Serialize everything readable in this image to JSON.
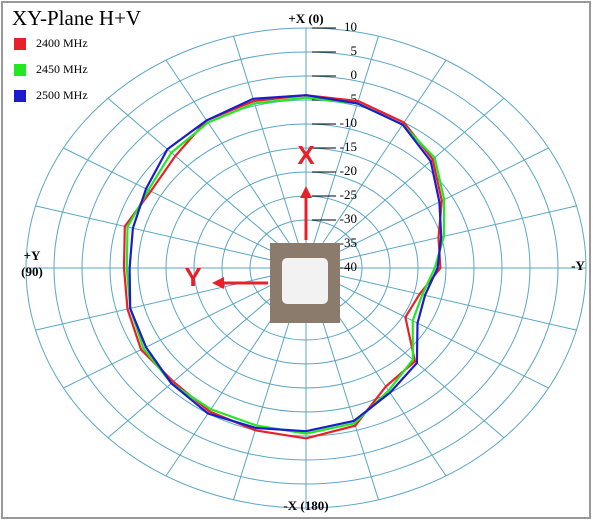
{
  "chart_data": {
    "type": "polar",
    "title": "XY-Plane  H+V",
    "theta": [
      0,
      15,
      30,
      45,
      60,
      75,
      90,
      105,
      120,
      135,
      150,
      165,
      180,
      195,
      210,
      225,
      240,
      255,
      270,
      285,
      300,
      315,
      330,
      345
    ],
    "series": [
      {
        "name": "2400 MHz",
        "color": "#e8202a",
        "values": [
          -4,
          -4,
          -4.5,
          -7,
          -8,
          -6.5,
          -7.5,
          -7,
          -6,
          -6.5,
          -5.5,
          -5,
          -4.5,
          -6,
          -11.5,
          -12.5,
          -19.5,
          -19,
          -16,
          -15.5,
          -12,
          -8,
          -5,
          -4
        ]
      },
      {
        "name": "2450 MHz",
        "color": "#22e822",
        "values": [
          -4.5,
          -4.5,
          -5,
          -6,
          -7.5,
          -7,
          -8,
          -7.5,
          -6.5,
          -6,
          -6,
          -6,
          -5.5,
          -6.5,
          -10.5,
          -13,
          -18,
          -18.5,
          -17,
          -14.5,
          -11.5,
          -7.5,
          -5.5,
          -4.5
        ]
      },
      {
        "name": "2500 MHz",
        "color": "#1c1ccc",
        "values": [
          -4,
          -3.5,
          -4.5,
          -5,
          -7,
          -8,
          -8.5,
          -7.5,
          -7,
          -6,
          -5,
          -5.5,
          -6,
          -7,
          -10,
          -12,
          -17,
          -18,
          -16.5,
          -15,
          -12.5,
          -8.5,
          -5.5,
          -4.5
        ]
      }
    ],
    "rlim": [
      -40,
      10
    ],
    "rticks": [
      10,
      5,
      0,
      -5,
      -10,
      -15,
      -20,
      -25,
      -30,
      -35,
      -40
    ],
    "thetaticks": [
      0,
      15,
      30,
      45,
      60,
      75,
      90,
      105,
      120,
      135,
      150,
      165,
      180,
      195,
      210,
      225,
      240,
      255,
      270,
      285,
      300,
      315,
      330,
      345
    ],
    "direction_labels": {
      "top": "+X (0)",
      "left": [
        "+Y",
        "(90)"
      ],
      "right": "-Y",
      "bottom": "-X (180)"
    },
    "annotations": [
      "X",
      "Y"
    ],
    "grid": true
  }
}
